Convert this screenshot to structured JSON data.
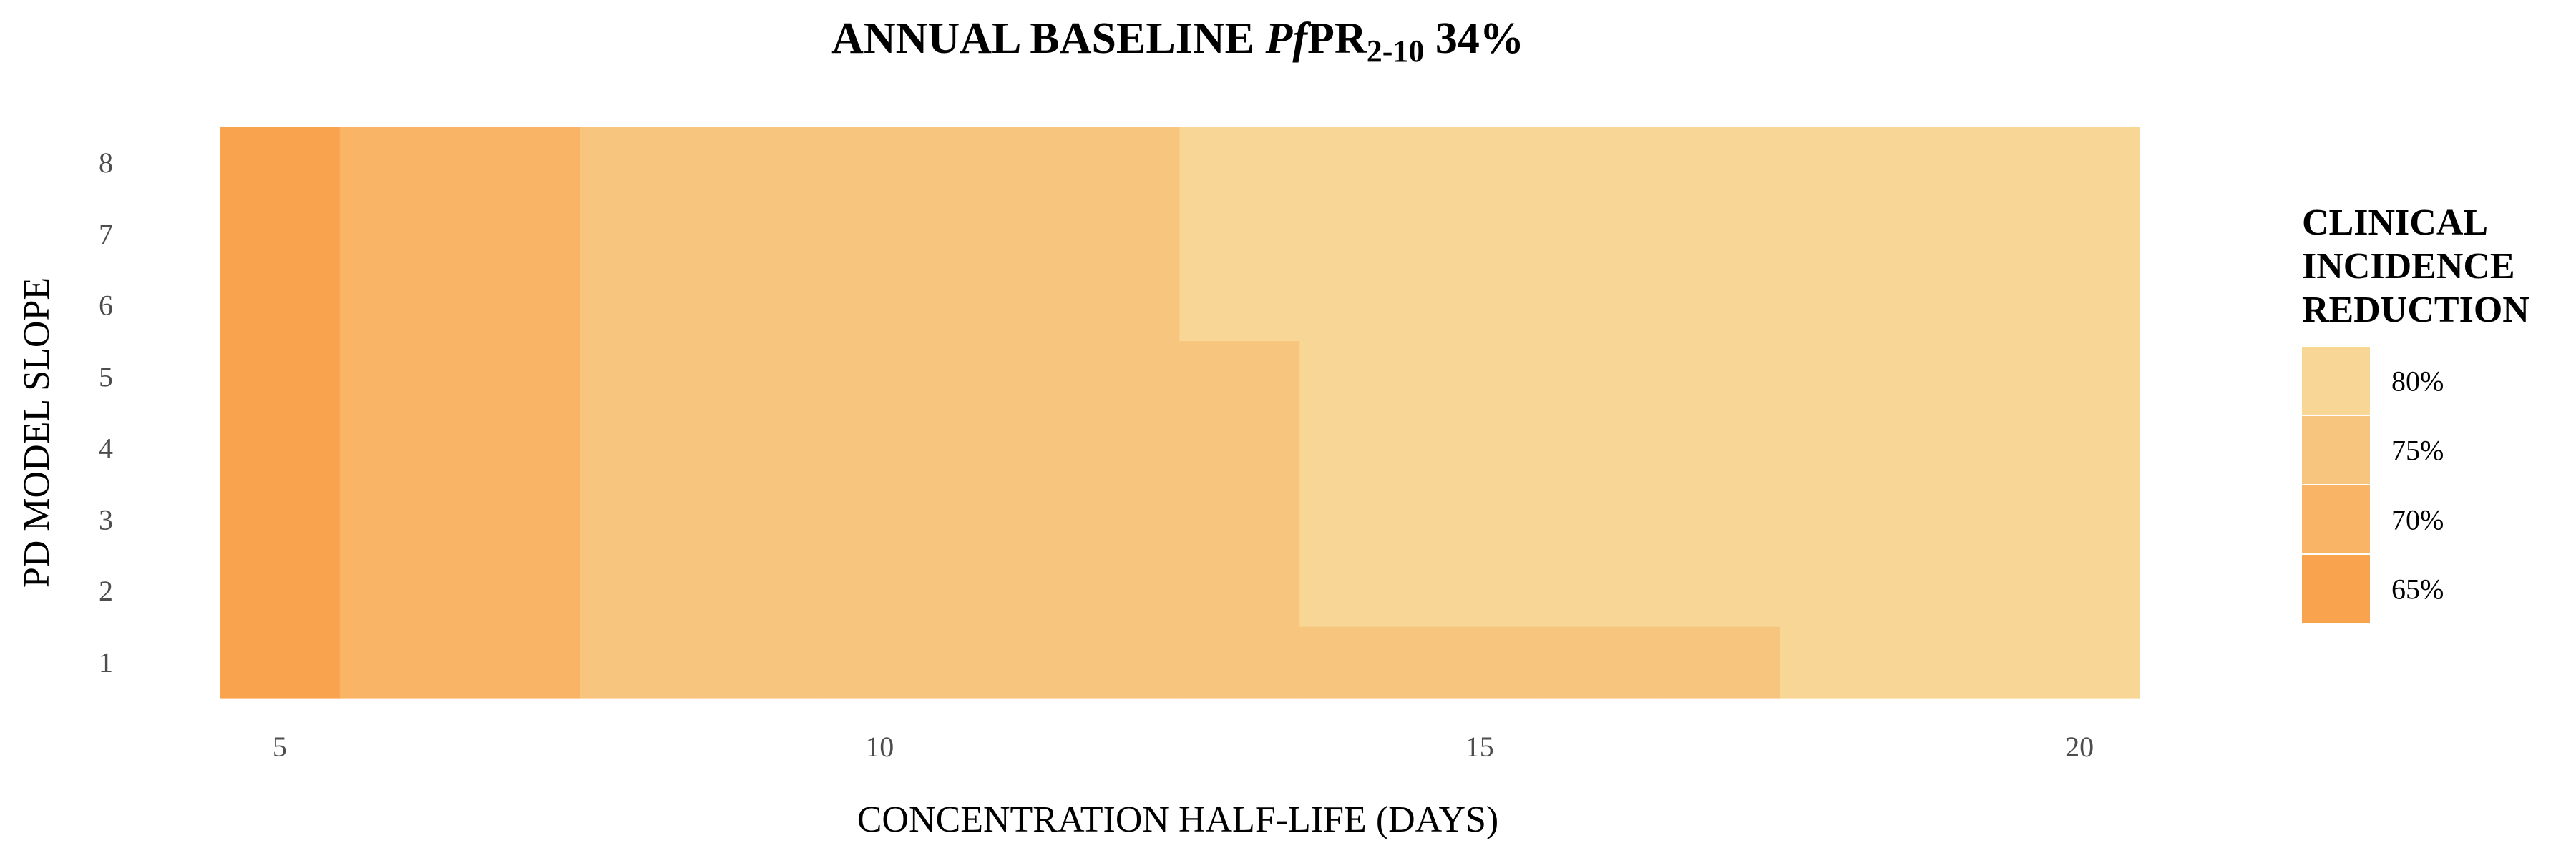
{
  "chart_data": {
    "type": "heatmap",
    "title": {
      "prefix": "ANNUAL BASELINE ",
      "italic": "Pf",
      "main": "PR",
      "subscript": "2-10",
      "suffix": " 34%"
    },
    "xlabel": "CONCENTRATION HALF-LIFE (DAYS)",
    "ylabel": "PD MODEL SLOPE",
    "x": [
      5,
      6,
      7,
      8,
      9,
      10,
      11,
      12,
      13,
      14,
      15,
      16,
      17,
      18,
      19,
      20
    ],
    "y": [
      1,
      2,
      3,
      4,
      5,
      6,
      7,
      8
    ],
    "xlim": [
      4.5,
      20.5
    ],
    "ylim": [
      0.5,
      8.5
    ],
    "xticks": [
      5,
      10,
      15,
      20
    ],
    "yticks": [
      1,
      2,
      3,
      4,
      5,
      6,
      7,
      8
    ],
    "cells": [
      [
        65,
        70,
        70,
        75,
        75,
        75,
        75,
        75,
        75,
        75,
        75,
        75,
        75,
        80,
        80,
        80
      ],
      [
        65,
        70,
        70,
        75,
        75,
        75,
        75,
        75,
        75,
        80,
        80,
        80,
        80,
        80,
        80,
        80
      ],
      [
        65,
        70,
        70,
        75,
        75,
        75,
        75,
        75,
        75,
        80,
        80,
        80,
        80,
        80,
        80,
        80
      ],
      [
        65,
        70,
        70,
        75,
        75,
        75,
        75,
        75,
        75,
        80,
        80,
        80,
        80,
        80,
        80,
        80
      ],
      [
        65,
        70,
        70,
        75,
        75,
        75,
        75,
        75,
        75,
        80,
        80,
        80,
        80,
        80,
        80,
        80
      ],
      [
        65,
        70,
        70,
        75,
        75,
        75,
        75,
        75,
        80,
        80,
        80,
        80,
        80,
        80,
        80,
        80
      ],
      [
        65,
        70,
        70,
        75,
        75,
        75,
        75,
        75,
        80,
        80,
        80,
        80,
        80,
        80,
        80,
        80
      ],
      [
        65,
        70,
        70,
        75,
        75,
        75,
        75,
        75,
        80,
        80,
        80,
        80,
        80,
        80,
        80,
        80
      ]
    ],
    "legend": {
      "title": [
        "CLINICAL",
        "INCIDENCE",
        "REDUCTION"
      ],
      "placement": "right",
      "entries": [
        {
          "label": "80%",
          "value": 80,
          "color": "#F8D696"
        },
        {
          "label": "75%",
          "value": 75,
          "color": "#F8C57E"
        },
        {
          "label": "70%",
          "value": 70,
          "color": "#F9B466"
        },
        {
          "label": "65%",
          "value": 65,
          "color": "#F9A34E"
        }
      ]
    },
    "grid": false
  }
}
